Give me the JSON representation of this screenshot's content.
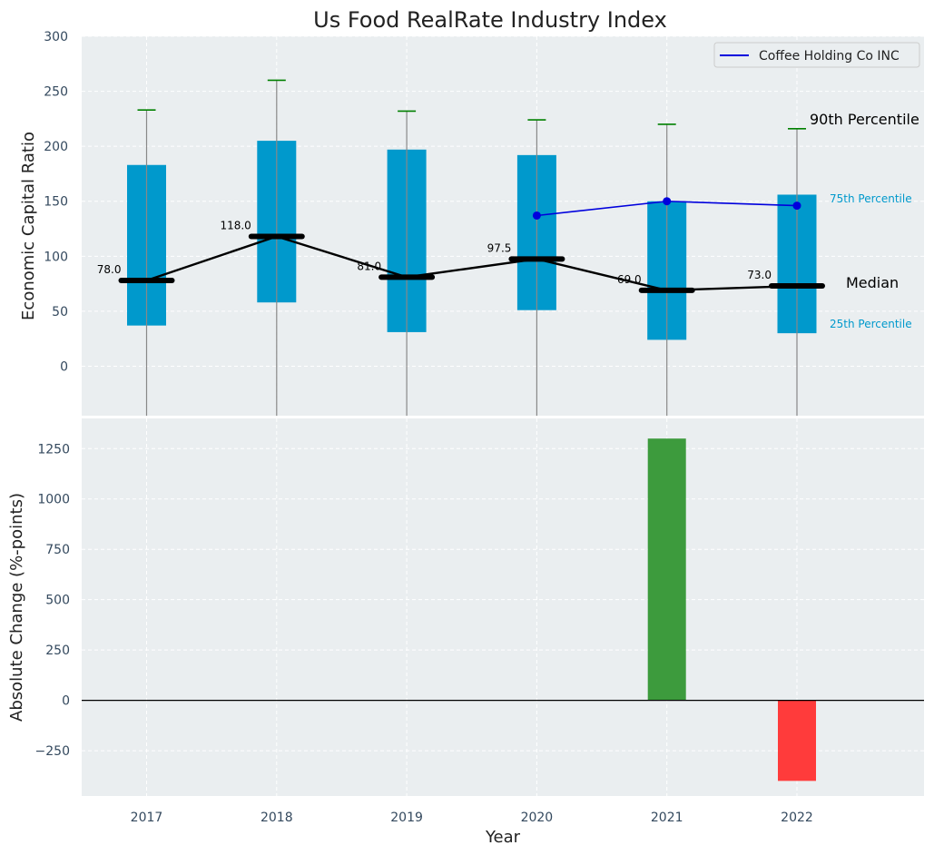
{
  "chart_data": [
    {
      "type": "box",
      "title": "Us Food RealRate Industry Index",
      "ylabel": "Economic Capital Ratio",
      "ylim": [
        -45,
        300
      ],
      "yticks": [
        0,
        50,
        100,
        150,
        200,
        250,
        300
      ],
      "grid": true,
      "legend_position": "top-right",
      "categories": [
        "2017",
        "2018",
        "2019",
        "2020",
        "2021",
        "2022"
      ],
      "percentile_25": [
        37,
        58,
        31,
        51,
        24,
        30
      ],
      "median": [
        78.0,
        118.0,
        81.0,
        97.5,
        69.0,
        73.0
      ],
      "percentile_75": [
        183,
        205,
        197,
        192,
        150,
        156
      ],
      "percentile_90": [
        233,
        260,
        232,
        224,
        220,
        216
      ],
      "median_labels": [
        "78.0",
        "118.0",
        "81.0",
        "97.5",
        "69.0",
        "73.0"
      ],
      "series": [
        {
          "name": "Coffee Holding Co INC",
          "x": [
            "2020",
            "2021",
            "2022"
          ],
          "values": [
            137,
            150,
            146
          ]
        }
      ],
      "annotations": {
        "p90": "90th Percentile",
        "p75": "75th Percentile",
        "median": "Median",
        "p25": "25th Percentile"
      }
    },
    {
      "type": "bar",
      "ylabel": "Absolute Change (%-points)",
      "xlabel": "Year",
      "ylim": [
        -475,
        1400
      ],
      "yticks": [
        -250,
        0,
        250,
        500,
        750,
        1000,
        1250
      ],
      "ytick_labels": [
        "−250",
        "0",
        "250",
        "500",
        "750",
        "1000",
        "1250"
      ],
      "grid": true,
      "categories": [
        "2017",
        "2018",
        "2019",
        "2020",
        "2021",
        "2022"
      ],
      "values": [
        null,
        null,
        null,
        null,
        1300,
        -400
      ]
    }
  ],
  "colors": {
    "box": "#0099cc",
    "median_line": "#000000",
    "whisker_cap": "#008000",
    "series_line": "#0000dd",
    "positive_bar": "#3d9b3d",
    "negative_bar": "#ff3b3b",
    "panel_bg": "#eaeef0"
  }
}
